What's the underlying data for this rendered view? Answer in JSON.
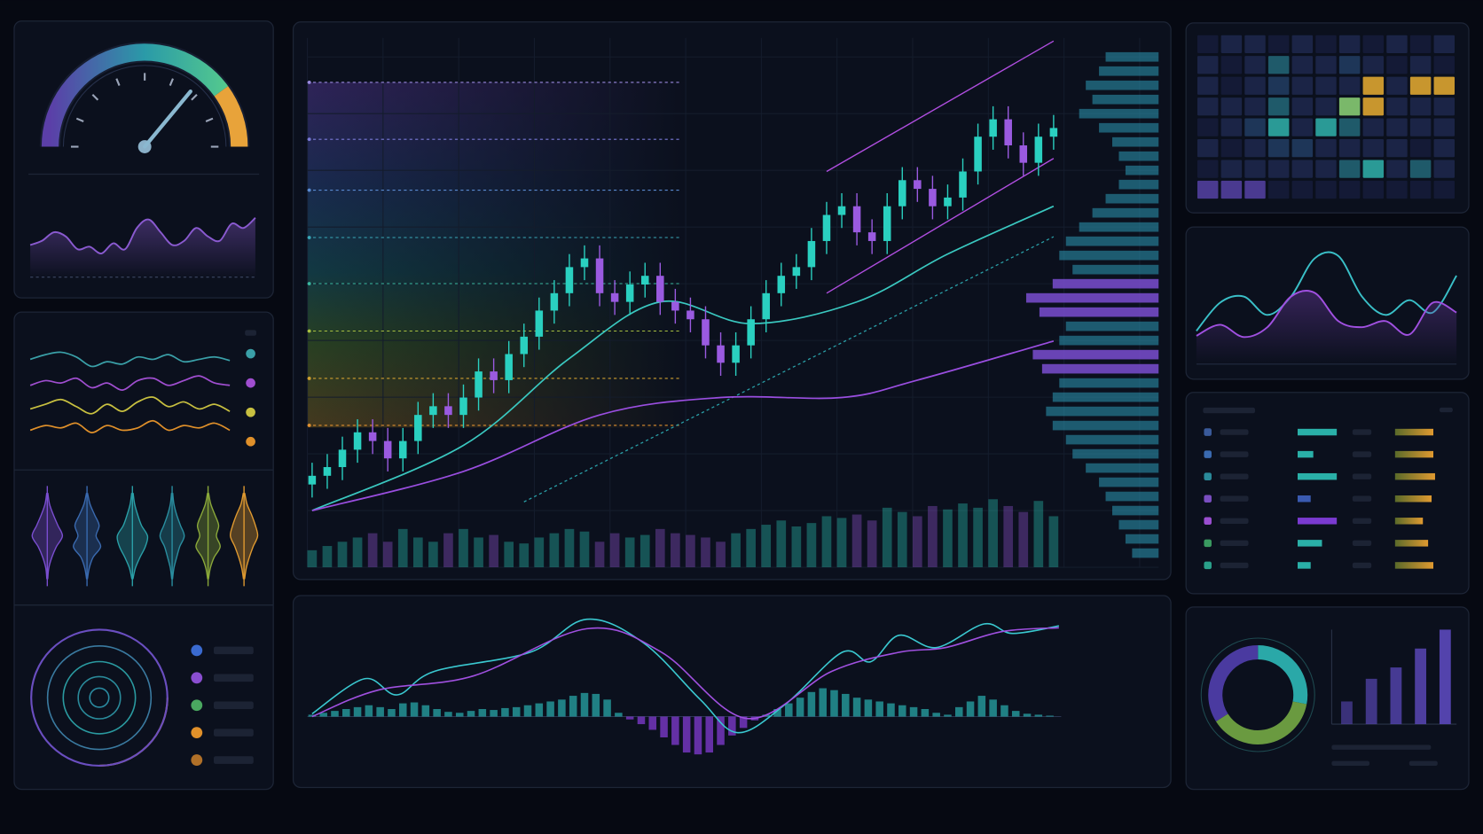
{
  "gauge": {
    "value": 72,
    "range": [
      0,
      100
    ],
    "ticks": [
      0,
      12.5,
      25,
      37.5,
      50,
      62.5,
      75,
      87.5,
      100
    ],
    "zones": [
      {
        "from": 0,
        "to": 80,
        "colors": [
          "#5b3fa8",
          "#2a9aa8",
          "#5ad08a"
        ]
      },
      {
        "from": 80,
        "to": 100,
        "colors": [
          "#e8a33a"
        ]
      }
    ]
  },
  "sparkline": {
    "values": [
      40,
      45,
      55,
      50,
      35,
      38,
      30,
      42,
      35,
      60,
      70,
      55,
      40,
      45,
      60,
      50,
      45,
      65,
      60,
      72
    ],
    "ylim": [
      0,
      100
    ],
    "color": "#8a5ad0"
  },
  "multi_line": {
    "ylim": [
      0,
      100
    ],
    "series": [
      {
        "color": "#3aa0a8",
        "values": [
          80,
          84,
          86,
          82,
          74,
          78,
          76,
          82,
          80,
          84,
          78,
          80,
          82,
          79
        ]
      },
      {
        "color": "#a04ed0",
        "values": [
          58,
          62,
          60,
          64,
          56,
          60,
          54,
          62,
          64,
          58,
          62,
          66,
          60,
          58
        ]
      },
      {
        "color": "#c8c040",
        "values": [
          38,
          42,
          46,
          40,
          34,
          42,
          36,
          44,
          48,
          40,
          44,
          38,
          42,
          36
        ]
      },
      {
        "color": "#e0902a",
        "values": [
          20,
          24,
          22,
          26,
          18,
          24,
          20,
          22,
          28,
          20,
          24,
          22,
          26,
          20
        ]
      }
    ]
  },
  "violins": {
    "series": [
      {
        "color": "#7a4ed0",
        "values": [
          4,
          15,
          40,
          70,
          100,
          60,
          30,
          10,
          3
        ]
      },
      {
        "color": "#3a6ab0",
        "values": [
          4,
          20,
          50,
          80,
          60,
          90,
          40,
          15,
          3
        ]
      },
      {
        "color": "#2aa0a8",
        "values": [
          5,
          15,
          35,
          60,
          100,
          85,
          50,
          20,
          4
        ]
      },
      {
        "color": "#2a8ea0",
        "values": [
          4,
          12,
          30,
          55,
          80,
          50,
          30,
          12,
          3
        ]
      },
      {
        "color": "#8aa83a",
        "values": [
          4,
          18,
          45,
          70,
          55,
          80,
          40,
          15,
          3
        ]
      },
      {
        "color": "#e09a30",
        "values": [
          5,
          20,
          50,
          75,
          90,
          60,
          35,
          15,
          4
        ]
      }
    ]
  },
  "rings": {
    "values": [
      100,
      76,
      53,
      31,
      14
    ],
    "colors": [
      "#6a4ec0",
      "#3a7aa0",
      "#2a9aa0",
      "#2a8a9a",
      "#2a8aa0"
    ],
    "legend_colors": [
      "#3a6ad0",
      "#8a4ed0",
      "#4aa860",
      "#e0902a",
      "#b07028"
    ]
  },
  "main_chart": {
    "type": "candlestick",
    "ylim": [
      0,
      110
    ],
    "up_color": "#2ad0c0",
    "down_color": "#9a5ae0",
    "open": [
      6,
      8,
      10,
      14,
      18,
      16,
      12,
      16,
      22,
      24,
      22,
      26,
      32,
      30,
      36,
      40,
      46,
      50,
      56,
      58,
      50,
      48,
      52,
      54,
      48,
      46,
      44,
      38,
      34,
      38,
      44,
      50,
      54,
      56,
      62,
      68,
      70,
      64,
      62,
      70,
      76,
      74,
      70,
      72,
      78,
      86,
      90,
      84,
      80,
      86
    ],
    "high": [
      11,
      13,
      17,
      21,
      21,
      19,
      19,
      25,
      27,
      27,
      29,
      35,
      35,
      39,
      43,
      49,
      53,
      59,
      61,
      61,
      53,
      55,
      57,
      57,
      51,
      49,
      47,
      41,
      41,
      47,
      53,
      57,
      59,
      65,
      71,
      73,
      73,
      67,
      73,
      79,
      79,
      77,
      75,
      81,
      89,
      93,
      93,
      87,
      89,
      91
    ],
    "low": [
      3,
      5,
      7,
      11,
      13,
      9,
      9,
      13,
      19,
      19,
      19,
      23,
      27,
      27,
      33,
      37,
      43,
      47,
      53,
      47,
      45,
      45,
      49,
      45,
      43,
      41,
      35,
      31,
      31,
      35,
      41,
      47,
      51,
      53,
      59,
      65,
      61,
      59,
      59,
      67,
      71,
      67,
      67,
      69,
      75,
      83,
      81,
      77,
      77,
      83
    ],
    "close": [
      8,
      10,
      14,
      18,
      16,
      12,
      16,
      22,
      24,
      22,
      26,
      32,
      30,
      36,
      40,
      46,
      50,
      56,
      58,
      50,
      48,
      52,
      54,
      48,
      46,
      44,
      38,
      34,
      38,
      44,
      50,
      54,
      56,
      62,
      68,
      70,
      64,
      62,
      70,
      76,
      74,
      70,
      72,
      78,
      86,
      90,
      84,
      80,
      86,
      88
    ],
    "moving_averages": [
      {
        "color": "#3ac8c0",
        "x": [
          0,
          10,
          17,
          23,
          29,
          36,
          42,
          49
        ],
        "values": [
          0,
          15,
          35,
          48,
          43,
          48,
          59,
          70
        ]
      },
      {
        "color": "#9a4ee0",
        "x": [
          0,
          10,
          19,
          27,
          35,
          40,
          49
        ],
        "values": [
          0,
          9,
          22,
          26,
          26,
          30,
          39
        ]
      }
    ],
    "channel": {
      "color": "#b04ee0",
      "lines": [
        {
          "x": [
            34,
            49
          ],
          "values": [
            78,
            108
          ]
        },
        {
          "x": [
            34,
            49
          ],
          "values": [
            50,
            81
          ]
        }
      ]
    },
    "trend": {
      "color": "#2aa0a8",
      "x": [
        14,
        49
      ],
      "values": [
        2,
        63
      ]
    },
    "levels": [
      {
        "value": 98.5,
        "color": "#9a8ae0"
      },
      {
        "value": 85.4,
        "color": "#7a7ad8"
      },
      {
        "value": 73.7,
        "color": "#5a8ad0"
      },
      {
        "value": 62.8,
        "color": "#3aa8b8"
      },
      {
        "value": 52.2,
        "color": "#3ab8a0"
      },
      {
        "value": 41.3,
        "color": "#a8c040"
      },
      {
        "value": 30.4,
        "color": "#d0a030"
      },
      {
        "value": 19.6,
        "color": "#e09030"
      }
    ],
    "volume": {
      "ylim": [
        0,
        100
      ],
      "values": [
        20,
        25,
        30,
        35,
        40,
        30,
        45,
        35,
        30,
        40,
        45,
        35,
        38,
        30,
        28,
        35,
        40,
        45,
        42,
        30,
        40,
        35,
        38,
        45,
        40,
        38,
        35,
        30,
        40,
        45,
        50,
        55,
        48,
        52,
        60,
        58,
        62,
        55,
        70,
        65,
        60,
        72,
        68,
        75,
        70,
        80,
        72,
        65,
        78,
        60
      ]
    },
    "volume_profile": {
      "color": "#2a8ea8",
      "highlight_color": "#7a4ed0",
      "highlight": [
        16,
        17,
        18,
        21,
        22
      ],
      "values": [
        40,
        45,
        55,
        50,
        60,
        45,
        35,
        30,
        25,
        30,
        40,
        50,
        60,
        70,
        75,
        65,
        80,
        100,
        90,
        70,
        75,
        95,
        88,
        75,
        80,
        85,
        80,
        70,
        65,
        55,
        45,
        40,
        35,
        30,
        25,
        20
      ]
    }
  },
  "macd": {
    "ylim": [
      -60,
      120
    ],
    "histogram": {
      "up_color": "#2ab0b0",
      "down_color": "#8a3ee0",
      "values": [
        2,
        4,
        6,
        8,
        10,
        12,
        10,
        8,
        14,
        15,
        12,
        8,
        5,
        4,
        6,
        8,
        7,
        9,
        10,
        12,
        14,
        16,
        18,
        22,
        25,
        24,
        18,
        4,
        -3,
        -8,
        -14,
        -22,
        -30,
        -38,
        -40,
        -38,
        -30,
        -20,
        -12,
        -4,
        2,
        8,
        14,
        20,
        26,
        30,
        28,
        24,
        20,
        18,
        16,
        14,
        12,
        10,
        8,
        4,
        2,
        10,
        16,
        22,
        18,
        12,
        6,
        3,
        2,
        1
      ]
    },
    "lines": [
      {
        "color": "#3ac8d0",
        "x": [
          0,
          4.6,
          7.5,
          10.8,
          19.2,
          24.2,
          29.2,
          34.2,
          37.5,
          41.7,
          46.7,
          49.2,
          51.7,
          55,
          59.2,
          61.7,
          65.8
        ],
        "values": [
          3,
          40,
          23,
          48,
          68,
          103,
          78,
          18,
          -17,
          13,
          68,
          58,
          86,
          73,
          98,
          88,
          96
        ]
      },
      {
        "color": "#a050e0",
        "x": [
          0,
          5.8,
          14.2,
          24.2,
          30.8,
          38.3,
          45.8,
          51.7,
          55.8,
          60.8,
          65.8
        ],
        "values": [
          0,
          28,
          43,
          93,
          68,
          -2,
          48,
          68,
          73,
          90,
          94
        ]
      }
    ]
  },
  "heatmap": {
    "palette": [
      "#141a36",
      "#1b2446",
      "#1e3658",
      "#1f5a6a",
      "#2a9a96",
      "#c8962e",
      "#7ab86a",
      "#4a3a90"
    ],
    "cells": [
      [
        0,
        1,
        1,
        0,
        1,
        0,
        1,
        0,
        1,
        0,
        1
      ],
      [
        1,
        0,
        1,
        3,
        1,
        1,
        2,
        1,
        0,
        1,
        0
      ],
      [
        1,
        0,
        1,
        2,
        1,
        1,
        1,
        5,
        1,
        5,
        5
      ],
      [
        1,
        1,
        1,
        3,
        1,
        1,
        6,
        5,
        1,
        1,
        1
      ],
      [
        0,
        1,
        2,
        4,
        1,
        4,
        3,
        1,
        1,
        1,
        1
      ],
      [
        1,
        0,
        1,
        2,
        2,
        1,
        1,
        1,
        1,
        0,
        1
      ],
      [
        0,
        1,
        1,
        1,
        1,
        1,
        3,
        4,
        1,
        3,
        1
      ],
      [
        7,
        7,
        7,
        0,
        0,
        0,
        0,
        0,
        0,
        0,
        0
      ]
    ]
  },
  "waves": {
    "ylim": [
      0,
      100
    ],
    "series": [
      {
        "color": "#3ac0c8",
        "values": [
          27,
          50,
          55,
          40,
          55,
          86,
          88,
          55,
          40,
          52,
          42,
          72
        ]
      },
      {
        "color": "#a050e0",
        "values": [
          23,
          32,
          22,
          30,
          55,
          58,
          35,
          30,
          35,
          24,
          50,
          42
        ]
      }
    ]
  },
  "table": {
    "xlim": [
      0,
      50
    ],
    "rows": [
      {
        "color": "#3a5a9a",
        "bar_color": "#2ab0a8",
        "value": 45,
        "score": 44
      },
      {
        "color": "#3a6ab0",
        "bar_color": "#2ab0a8",
        "value": 18,
        "score": 44
      },
      {
        "color": "#2a8a9a",
        "bar_color": "#2ab0a8",
        "value": 45,
        "score": 46
      },
      {
        "color": "#7a4ec0",
        "bar_color": "#3a5ab0",
        "value": 15,
        "score": 42
      },
      {
        "color": "#9a4ed0",
        "bar_color": "#7a3ad0",
        "value": 45,
        "score": 32
      },
      {
        "color": "#3a9a60",
        "bar_color": "#2ab0a8",
        "value": 28,
        "score": 38
      },
      {
        "color": "#2aa08a",
        "bar_color": "#2ab0a8",
        "value": 15,
        "score": 44
      }
    ]
  },
  "donut": {
    "values": [
      28,
      38,
      34
    ],
    "colors": [
      "#2aa8a8",
      "#6a9a40",
      "#4a3aa0"
    ]
  },
  "bars": {
    "ylim": [
      0,
      100
    ],
    "color": "#5a48b8",
    "values": [
      24,
      48,
      60,
      80,
      100
    ]
  }
}
